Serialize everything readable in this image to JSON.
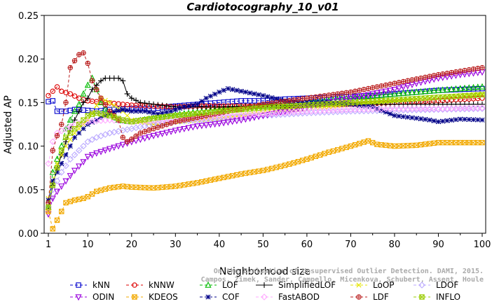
{
  "chart_data": {
    "type": "line",
    "title": "Cardiotocography_10_v01",
    "xlabel": "Neighborhood size",
    "ylabel": "Adjusted AP",
    "xlim": [
      1,
      100
    ],
    "ylim": [
      0,
      0.25
    ],
    "xticks": [
      "1",
      "10",
      "20",
      "30",
      "40",
      "50",
      "60",
      "70",
      "80",
      "90",
      "100"
    ],
    "yticks": [
      "0.00",
      "0.05",
      "0.10",
      "0.15",
      "0.20",
      "0.25"
    ],
    "grid": false,
    "legend_position": "bottom",
    "watermark": [
      "Campos, Zimek, Sander, Campello, Micenkova, Schubert, Assent, Houle",
      "On the Evaluation of Unsupervised Outlier Detection. DAMI, 2015."
    ],
    "series": [
      {
        "name": "kNN",
        "color": "#0000cc",
        "marker": "square",
        "dash": "4,3",
        "points": [
          [
            1,
            0.151
          ],
          [
            2,
            0.152
          ],
          [
            3,
            0.14
          ],
          [
            5,
            0.14
          ],
          [
            7,
            0.142
          ],
          [
            10,
            0.141
          ],
          [
            12,
            0.14
          ],
          [
            15,
            0.142
          ],
          [
            20,
            0.143
          ],
          [
            25,
            0.143
          ],
          [
            30,
            0.146
          ],
          [
            35,
            0.148
          ],
          [
            40,
            0.15
          ],
          [
            45,
            0.152
          ],
          [
            50,
            0.152
          ],
          [
            55,
            0.154
          ],
          [
            60,
            0.155
          ],
          [
            65,
            0.156
          ],
          [
            70,
            0.157
          ],
          [
            75,
            0.158
          ],
          [
            80,
            0.16
          ],
          [
            85,
            0.162
          ],
          [
            90,
            0.164
          ],
          [
            95,
            0.165
          ],
          [
            100,
            0.166
          ]
        ]
      },
      {
        "name": "kNNW",
        "color": "#dd0000",
        "marker": "circle",
        "dash": "4,3",
        "points": [
          [
            1,
            0.158
          ],
          [
            2,
            0.163
          ],
          [
            3,
            0.168
          ],
          [
            4,
            0.163
          ],
          [
            6,
            0.16
          ],
          [
            8,
            0.155
          ],
          [
            10,
            0.152
          ],
          [
            14,
            0.15
          ],
          [
            20,
            0.147
          ],
          [
            25,
            0.146
          ],
          [
            30,
            0.145
          ],
          [
            35,
            0.146
          ],
          [
            40,
            0.146
          ],
          [
            50,
            0.146
          ],
          [
            60,
            0.147
          ],
          [
            70,
            0.148
          ],
          [
            80,
            0.15
          ],
          [
            90,
            0.152
          ],
          [
            100,
            0.155
          ]
        ]
      },
      {
        "name": "LOF",
        "color": "#00bb00",
        "marker": "triangle",
        "dash": "4,3",
        "points": [
          [
            1,
            0.03
          ],
          [
            2,
            0.07
          ],
          [
            3,
            0.085
          ],
          [
            4,
            0.1
          ],
          [
            5,
            0.12
          ],
          [
            6,
            0.13
          ],
          [
            7,
            0.14
          ],
          [
            8,
            0.148
          ],
          [
            9,
            0.16
          ],
          [
            10,
            0.17
          ],
          [
            11,
            0.178
          ],
          [
            12,
            0.165
          ],
          [
            13,
            0.15
          ],
          [
            15,
            0.135
          ],
          [
            17,
            0.13
          ],
          [
            20,
            0.128
          ],
          [
            25,
            0.132
          ],
          [
            30,
            0.136
          ],
          [
            40,
            0.142
          ],
          [
            50,
            0.146
          ],
          [
            60,
            0.15
          ],
          [
            70,
            0.155
          ],
          [
            80,
            0.16
          ],
          [
            90,
            0.164
          ],
          [
            100,
            0.168
          ]
        ]
      },
      {
        "name": "SimplifiedLOF",
        "color": "#000000",
        "marker": "plus",
        "dash": "",
        "points": [
          [
            1,
            0.028
          ],
          [
            2,
            0.055
          ],
          [
            3,
            0.075
          ],
          [
            4,
            0.09
          ],
          [
            5,
            0.105
          ],
          [
            6,
            0.12
          ],
          [
            7,
            0.13
          ],
          [
            8,
            0.14
          ],
          [
            9,
            0.15
          ],
          [
            10,
            0.155
          ],
          [
            11,
            0.165
          ],
          [
            12,
            0.17
          ],
          [
            13,
            0.175
          ],
          [
            14,
            0.178
          ],
          [
            15,
            0.178
          ],
          [
            16,
            0.178
          ],
          [
            17,
            0.178
          ],
          [
            18,
            0.175
          ],
          [
            19,
            0.16
          ],
          [
            20,
            0.155
          ],
          [
            22,
            0.15
          ],
          [
            25,
            0.148
          ],
          [
            30,
            0.145
          ],
          [
            40,
            0.145
          ],
          [
            50,
            0.146
          ],
          [
            60,
            0.147
          ],
          [
            70,
            0.148
          ],
          [
            80,
            0.148
          ],
          [
            90,
            0.148
          ],
          [
            100,
            0.148
          ]
        ]
      },
      {
        "name": "LoOP",
        "color": "#e6e600",
        "marker": "x",
        "dash": "4,3",
        "points": [
          [
            1,
            0.04
          ],
          [
            2,
            0.06
          ],
          [
            3,
            0.08
          ],
          [
            5,
            0.1
          ],
          [
            7,
            0.115
          ],
          [
            10,
            0.13
          ],
          [
            13,
            0.155
          ],
          [
            15,
            0.15
          ],
          [
            18,
            0.14
          ],
          [
            20,
            0.13
          ],
          [
            25,
            0.125
          ],
          [
            30,
            0.128
          ],
          [
            40,
            0.132
          ],
          [
            50,
            0.138
          ],
          [
            60,
            0.143
          ],
          [
            70,
            0.148
          ],
          [
            80,
            0.152
          ],
          [
            90,
            0.156
          ],
          [
            100,
            0.16
          ]
        ]
      },
      {
        "name": "LDOF",
        "color": "#bbaaff",
        "marker": "diamond",
        "dash": "4,3",
        "points": [
          [
            1,
            0.03
          ],
          [
            2,
            0.05
          ],
          [
            4,
            0.07
          ],
          [
            6,
            0.085
          ],
          [
            8,
            0.095
          ],
          [
            10,
            0.105
          ],
          [
            12,
            0.11
          ],
          [
            15,
            0.115
          ],
          [
            20,
            0.12
          ],
          [
            25,
            0.125
          ],
          [
            30,
            0.128
          ],
          [
            40,
            0.132
          ],
          [
            50,
            0.135
          ],
          [
            60,
            0.138
          ],
          [
            70,
            0.14
          ],
          [
            80,
            0.141
          ],
          [
            90,
            0.142
          ],
          [
            100,
            0.143
          ]
        ]
      },
      {
        "name": "ODIN",
        "color": "#9900dd",
        "marker": "tri-down",
        "dash": "4,3",
        "points": [
          [
            1,
            0.022
          ],
          [
            2,
            0.04
          ],
          [
            3,
            0.048
          ],
          [
            5,
            0.06
          ],
          [
            7,
            0.072
          ],
          [
            9,
            0.082
          ],
          [
            10,
            0.088
          ],
          [
            12,
            0.092
          ],
          [
            15,
            0.097
          ],
          [
            20,
            0.105
          ],
          [
            25,
            0.112
          ],
          [
            30,
            0.118
          ],
          [
            35,
            0.123
          ],
          [
            40,
            0.126
          ],
          [
            45,
            0.13
          ],
          [
            50,
            0.135
          ],
          [
            55,
            0.14
          ],
          [
            60,
            0.145
          ],
          [
            65,
            0.15
          ],
          [
            70,
            0.155
          ],
          [
            75,
            0.16
          ],
          [
            80,
            0.165
          ],
          [
            85,
            0.172
          ],
          [
            90,
            0.178
          ],
          [
            95,
            0.182
          ],
          [
            100,
            0.185
          ]
        ]
      },
      {
        "name": "KDEOS",
        "color": "#f2a900",
        "marker": "boxx",
        "dash": "4,3",
        "points": [
          [
            1,
            0.025
          ],
          [
            2,
            0.005
          ],
          [
            3,
            0.015
          ],
          [
            4,
            0.025
          ],
          [
            5,
            0.035
          ],
          [
            7,
            0.038
          ],
          [
            9,
            0.04
          ],
          [
            10,
            0.042
          ],
          [
            12,
            0.048
          ],
          [
            15,
            0.052
          ],
          [
            18,
            0.054
          ],
          [
            20,
            0.053
          ],
          [
            25,
            0.052
          ],
          [
            30,
            0.054
          ],
          [
            35,
            0.058
          ],
          [
            40,
            0.063
          ],
          [
            45,
            0.068
          ],
          [
            50,
            0.072
          ],
          [
            55,
            0.078
          ],
          [
            60,
            0.085
          ],
          [
            65,
            0.093
          ],
          [
            70,
            0.1
          ],
          [
            74,
            0.106
          ],
          [
            76,
            0.102
          ],
          [
            80,
            0.1
          ],
          [
            85,
            0.101
          ],
          [
            90,
            0.104
          ],
          [
            95,
            0.104
          ],
          [
            100,
            0.104
          ]
        ]
      },
      {
        "name": "COF",
        "color": "#000088",
        "marker": "asterisk",
        "dash": "4,3",
        "points": [
          [
            1,
            0.038
          ],
          [
            2,
            0.06
          ],
          [
            3,
            0.07
          ],
          [
            4,
            0.08
          ],
          [
            5,
            0.09
          ],
          [
            6,
            0.1
          ],
          [
            7,
            0.11
          ],
          [
            8,
            0.115
          ],
          [
            10,
            0.125
          ],
          [
            12,
            0.13
          ],
          [
            15,
            0.138
          ],
          [
            18,
            0.142
          ],
          [
            20,
            0.14
          ],
          [
            23,
            0.14
          ],
          [
            26,
            0.137
          ],
          [
            29,
            0.14
          ],
          [
            32,
            0.145
          ],
          [
            35,
            0.148
          ],
          [
            37,
            0.155
          ],
          [
            40,
            0.162
          ],
          [
            42,
            0.166
          ],
          [
            45,
            0.163
          ],
          [
            50,
            0.158
          ],
          [
            55,
            0.152
          ],
          [
            60,
            0.15
          ],
          [
            65,
            0.15
          ],
          [
            70,
            0.148
          ],
          [
            75,
            0.145
          ],
          [
            80,
            0.135
          ],
          [
            85,
            0.132
          ],
          [
            88,
            0.13
          ],
          [
            90,
            0.128
          ],
          [
            95,
            0.131
          ],
          [
            100,
            0.13
          ]
        ]
      },
      {
        "name": "FastABOD",
        "color": "#ffaaff",
        "marker": "diamond",
        "dash": "4,3",
        "points": [
          [
            1,
            0.08
          ],
          [
            2,
            0.105
          ],
          [
            3,
            0.115
          ],
          [
            5,
            0.12
          ],
          [
            7,
            0.125
          ],
          [
            10,
            0.128
          ],
          [
            15,
            0.13
          ],
          [
            20,
            0.128
          ],
          [
            30,
            0.13
          ],
          [
            40,
            0.134
          ],
          [
            50,
            0.137
          ],
          [
            60,
            0.14
          ],
          [
            70,
            0.142
          ],
          [
            80,
            0.143
          ],
          [
            90,
            0.143
          ],
          [
            100,
            0.144
          ]
        ]
      },
      {
        "name": "LDF",
        "color": "#bb2222",
        "marker": "circleplus",
        "dash": "4,3",
        "points": [
          [
            1,
            0.035
          ],
          [
            2,
            0.095
          ],
          [
            3,
            0.112
          ],
          [
            4,
            0.125
          ],
          [
            5,
            0.15
          ],
          [
            6,
            0.19
          ],
          [
            7,
            0.198
          ],
          [
            8,
            0.205
          ],
          [
            9,
            0.207
          ],
          [
            10,
            0.195
          ],
          [
            11,
            0.175
          ],
          [
            12,
            0.165
          ],
          [
            13,
            0.155
          ],
          [
            15,
            0.14
          ],
          [
            17,
            0.13
          ],
          [
            18,
            0.11
          ],
          [
            19,
            0.105
          ],
          [
            20,
            0.108
          ],
          [
            22,
            0.115
          ],
          [
            25,
            0.12
          ],
          [
            30,
            0.128
          ],
          [
            40,
            0.138
          ],
          [
            50,
            0.148
          ],
          [
            60,
            0.155
          ],
          [
            70,
            0.162
          ],
          [
            80,
            0.172
          ],
          [
            90,
            0.182
          ],
          [
            100,
            0.19
          ]
        ]
      },
      {
        "name": "INFLO",
        "color": "#99cc00",
        "marker": "boxx",
        "dash": "4,3",
        "points": [
          [
            1,
            0.03
          ],
          [
            2,
            0.055
          ],
          [
            3,
            0.075
          ],
          [
            4,
            0.095
          ],
          [
            5,
            0.11
          ],
          [
            6,
            0.115
          ],
          [
            8,
            0.125
          ],
          [
            10,
            0.135
          ],
          [
            12,
            0.138
          ],
          [
            15,
            0.135
          ],
          [
            18,
            0.13
          ],
          [
            20,
            0.128
          ],
          [
            25,
            0.132
          ],
          [
            30,
            0.135
          ],
          [
            40,
            0.14
          ],
          [
            50,
            0.144
          ],
          [
            60,
            0.147
          ],
          [
            70,
            0.15
          ],
          [
            80,
            0.153
          ],
          [
            90,
            0.156
          ],
          [
            100,
            0.159
          ]
        ]
      }
    ]
  }
}
